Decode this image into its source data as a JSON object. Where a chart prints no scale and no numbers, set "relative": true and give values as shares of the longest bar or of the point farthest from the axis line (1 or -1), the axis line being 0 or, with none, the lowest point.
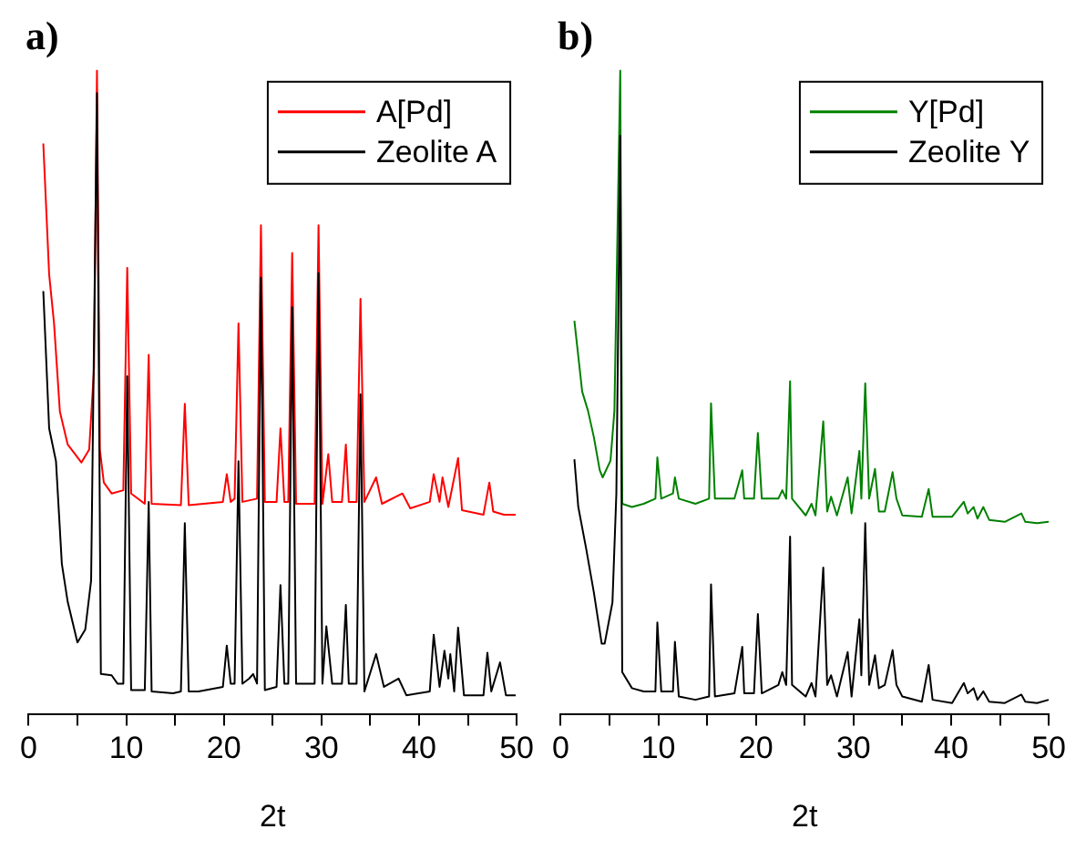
{
  "chart_data": [
    {
      "type": "line",
      "title": "a)",
      "xlabel": "2t",
      "relative": true,
      "xlim": [
        0,
        50
      ],
      "xticks": [
        0,
        {
          "value": 5,
          "label": null
        },
        10,
        {
          "value": 15,
          "label": null
        },
        20,
        {
          "value": 25,
          "label": null
        },
        30,
        {
          "value": 35,
          "label": null
        },
        40,
        {
          "value": 45,
          "label": null
        },
        50
      ],
      "tick_labels": "x",
      "grid": false,
      "legend": "top right",
      "line_style": "solid",
      "marker": "none",
      "series": [
        {
          "name": "A[Pd]",
          "color": "#ff0000",
          "x": [
            1.5,
            2.1,
            2.6,
            3.2,
            4.0,
            5.4,
            6.2,
            6.7,
            7.0,
            7.3,
            7.7,
            8.5,
            9.7,
            10.1,
            10.5,
            11.9,
            12.3,
            12.6,
            15.6,
            16.0,
            16.4,
            19.9,
            20.3,
            20.7,
            21.1,
            21.5,
            21.9,
            23.4,
            23.8,
            24.2,
            25.4,
            25.8,
            26.2,
            26.6,
            27.0,
            27.4,
            29.3,
            29.7,
            30.1,
            30.7,
            31.1,
            32.1,
            32.5,
            32.8,
            33.6,
            34.0,
            34.4,
            35.6,
            36.2,
            38.3,
            39.1,
            41.1,
            41.5,
            42.1,
            42.4,
            43.0,
            44.0,
            44.4,
            46.6,
            47.2,
            47.6,
            48.7,
            49.9
          ],
          "values": [
            0.886,
            0.683,
            0.607,
            0.47,
            0.419,
            0.391,
            0.411,
            0.538,
            1.0,
            0.411,
            0.36,
            0.343,
            0.348,
            0.693,
            0.343,
            0.327,
            0.558,
            0.327,
            0.325,
            0.482,
            0.325,
            0.33,
            0.373,
            0.33,
            0.335,
            0.607,
            0.33,
            0.335,
            0.759,
            0.33,
            0.33,
            0.444,
            0.33,
            0.33,
            0.716,
            0.327,
            0.327,
            0.759,
            0.327,
            0.404,
            0.33,
            0.33,
            0.419,
            0.33,
            0.33,
            0.645,
            0.33,
            0.368,
            0.327,
            0.343,
            0.32,
            0.33,
            0.373,
            0.33,
            0.368,
            0.322,
            0.398,
            0.317,
            0.31,
            0.36,
            0.315,
            0.31,
            0.31
          ]
        },
        {
          "name": "Zeolite A",
          "color": "#000000",
          "x": [
            1.5,
            2.1,
            2.8,
            3.4,
            4.0,
            5.0,
            5.8,
            6.4,
            7.0,
            7.4,
            8.5,
            9.1,
            9.7,
            10.1,
            10.5,
            11.9,
            12.3,
            12.6,
            14.8,
            15.6,
            16.0,
            16.4,
            17.4,
            19.9,
            20.3,
            20.7,
            21.1,
            21.5,
            21.9,
            22.6,
            23.0,
            23.4,
            23.8,
            24.2,
            25.4,
            25.8,
            26.2,
            26.6,
            27.0,
            27.4,
            29.3,
            29.7,
            30.1,
            30.5,
            31.1,
            32.1,
            32.5,
            32.8,
            33.6,
            34.0,
            34.4,
            35.6,
            36.4,
            37.9,
            38.7,
            41.1,
            41.5,
            42.1,
            42.6,
            43.0,
            43.2,
            43.6,
            44.0,
            44.6,
            46.6,
            47.0,
            47.4,
            48.3,
            48.9,
            49.9
          ],
          "values": [
            0.657,
            0.444,
            0.393,
            0.234,
            0.175,
            0.112,
            0.132,
            0.208,
            0.964,
            0.063,
            0.061,
            0.048,
            0.048,
            0.525,
            0.038,
            0.038,
            0.33,
            0.036,
            0.033,
            0.036,
            0.297,
            0.036,
            0.036,
            0.043,
            0.107,
            0.048,
            0.048,
            0.393,
            0.048,
            0.056,
            0.063,
            0.048,
            0.678,
            0.038,
            0.043,
            0.201,
            0.048,
            0.048,
            0.632,
            0.048,
            0.048,
            0.685,
            0.048,
            0.137,
            0.048,
            0.048,
            0.17,
            0.048,
            0.048,
            0.497,
            0.036,
            0.094,
            0.043,
            0.056,
            0.03,
            0.036,
            0.124,
            0.043,
            0.099,
            0.056,
            0.094,
            0.036,
            0.135,
            0.03,
            0.03,
            0.096,
            0.036,
            0.081,
            0.03,
            0.03
          ]
        }
      ]
    },
    {
      "type": "line",
      "title": "b)",
      "xlabel": "2t",
      "relative": true,
      "xlim": [
        0,
        50
      ],
      "xticks": [
        0,
        {
          "value": 5,
          "label": null
        },
        10,
        {
          "value": 15,
          "label": null
        },
        20,
        {
          "value": 25,
          "label": null
        },
        30,
        {
          "value": 35,
          "label": null
        },
        40,
        {
          "value": 45,
          "label": null
        },
        50
      ],
      "tick_labels": "x",
      "grid": false,
      "legend": "top right",
      "line_style": "solid",
      "marker": "none",
      "series": [
        {
          "name": "Y[Pd]",
          "color": "#008000",
          "x": [
            1.4,
            2.2,
            2.8,
            3.4,
            4.0,
            4.3,
            5.1,
            5.5,
            6.1,
            6.3,
            7.3,
            8.5,
            9.7,
            9.9,
            10.3,
            11.5,
            11.7,
            12.1,
            13.8,
            15.2,
            15.4,
            15.8,
            17.8,
            18.6,
            18.8,
            19.8,
            20.2,
            20.6,
            22.3,
            22.7,
            23.1,
            23.5,
            23.7,
            25.1,
            25.7,
            26.1,
            26.9,
            27.3,
            27.7,
            28.3,
            29.4,
            29.8,
            30.6,
            30.8,
            31.2,
            31.6,
            32.2,
            32.6,
            33.2,
            34.0,
            34.4,
            35.0,
            37.0,
            37.7,
            38.1,
            40.1,
            41.3,
            41.7,
            42.3,
            42.7,
            43.3,
            43.9,
            45.5,
            47.2,
            47.6,
            48.8,
            50.0
          ],
          "values": [
            0.611,
            0.501,
            0.471,
            0.43,
            0.379,
            0.368,
            0.394,
            0.471,
            1.0,
            0.327,
            0.322,
            0.327,
            0.335,
            0.399,
            0.335,
            0.343,
            0.368,
            0.335,
            0.327,
            0.335,
            0.483,
            0.335,
            0.335,
            0.379,
            0.335,
            0.335,
            0.437,
            0.335,
            0.335,
            0.348,
            0.335,
            0.517,
            0.335,
            0.309,
            0.327,
            0.309,
            0.455,
            0.315,
            0.338,
            0.309,
            0.368,
            0.312,
            0.409,
            0.335,
            0.514,
            0.335,
            0.381,
            0.315,
            0.315,
            0.376,
            0.335,
            0.309,
            0.307,
            0.35,
            0.307,
            0.307,
            0.33,
            0.312,
            0.322,
            0.304,
            0.322,
            0.302,
            0.299,
            0.312,
            0.299,
            0.297,
            0.299
          ]
        },
        {
          "name": "Zeolite Y",
          "color": "#000000",
          "x": [
            1.4,
            1.8,
            2.6,
            3.4,
            4.2,
            4.5,
            5.3,
            5.7,
            6.1,
            6.3,
            7.3,
            8.5,
            9.7,
            9.9,
            10.3,
            11.5,
            11.7,
            12.1,
            13.8,
            15.2,
            15.4,
            15.8,
            17.8,
            18.6,
            18.8,
            19.8,
            20.2,
            20.6,
            22.3,
            22.7,
            23.1,
            23.5,
            23.7,
            25.1,
            25.7,
            26.1,
            26.9,
            27.3,
            27.7,
            28.3,
            29.4,
            29.8,
            30.6,
            30.8,
            31.2,
            31.6,
            32.2,
            32.6,
            33.2,
            34.0,
            34.4,
            35.0,
            37.0,
            37.7,
            38.1,
            40.1,
            41.3,
            41.7,
            42.3,
            42.7,
            43.3,
            43.9,
            45.5,
            47.2,
            47.6,
            48.8,
            50.0
          ],
          "values": [
            0.396,
            0.322,
            0.258,
            0.189,
            0.11,
            0.11,
            0.174,
            0.343,
            0.898,
            0.066,
            0.041,
            0.036,
            0.036,
            0.143,
            0.036,
            0.036,
            0.113,
            0.028,
            0.023,
            0.028,
            0.202,
            0.028,
            0.033,
            0.105,
            0.033,
            0.033,
            0.156,
            0.033,
            0.046,
            0.066,
            0.046,
            0.276,
            0.046,
            0.028,
            0.049,
            0.028,
            0.228,
            0.046,
            0.061,
            0.028,
            0.097,
            0.028,
            0.148,
            0.061,
            0.297,
            0.046,
            0.092,
            0.041,
            0.046,
            0.1,
            0.046,
            0.028,
            0.02,
            0.077,
            0.023,
            0.018,
            0.049,
            0.033,
            0.041,
            0.023,
            0.036,
            0.02,
            0.018,
            0.031,
            0.02,
            0.018,
            0.023
          ]
        }
      ]
    }
  ]
}
